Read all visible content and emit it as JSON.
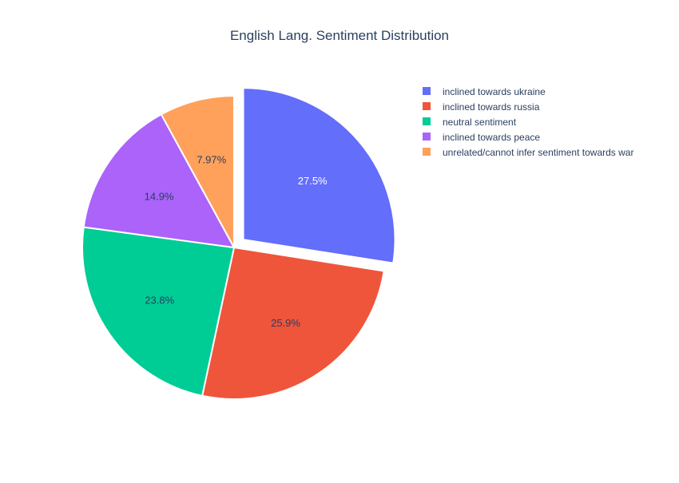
{
  "chart_data": {
    "type": "pie",
    "title": "English Lang. Sentiment Distribution",
    "labels": [
      "inclined towards ukraine",
      "inclined towards russia",
      "neutral sentiment",
      "inclined towards peace",
      "unrelated/cannot infer sentiment towards war"
    ],
    "values": [
      27.5,
      25.9,
      23.8,
      14.9,
      7.97
    ],
    "text_labels": [
      "27.5%",
      "25.9%",
      "23.8%",
      "14.9%",
      "7.97%"
    ],
    "colors": [
      "#636efa",
      "#ef553b",
      "#00cc96",
      "#ab63fa",
      "#ffa15a"
    ],
    "pull": [
      0.08,
      0,
      0,
      0,
      0
    ],
    "direction": "clockwise",
    "start_angle": "top",
    "legend_position": "top-right"
  }
}
